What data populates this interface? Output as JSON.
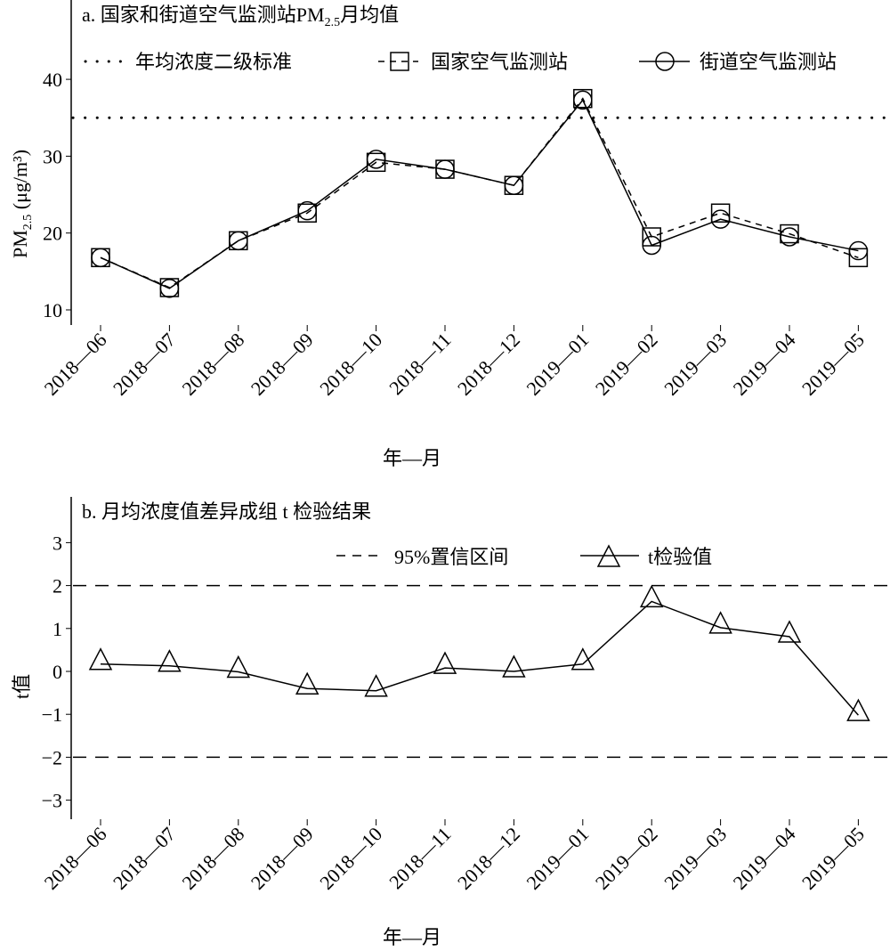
{
  "chart_data": [
    {
      "type": "line",
      "title": "a. 国家和街道空气监测站PM₂.₅月均值",
      "title_main": "a. 国家和街道空气监测站PM",
      "title_sub": "2.5",
      "title_tail": "月均值",
      "xlabel": "年—月",
      "ylabel_main": "PM",
      "ylabel_sub": "2.5",
      "ylabel_tail": " (μg/m³)",
      "ylim": [
        8,
        45
      ],
      "yticks": [
        10,
        20,
        30,
        40
      ],
      "categories": [
        "2018—06",
        "2018—07",
        "2018—08",
        "2018—09",
        "2018—10",
        "2018—11",
        "2018—12",
        "2019—01",
        "2019—02",
        "2019—03",
        "2019—04",
        "2019—05"
      ],
      "reference": {
        "name": "年均浓度二级标准",
        "value": 35
      },
      "series": [
        {
          "name": "国家空气监测站",
          "marker": "square",
          "style": "dashed",
          "values": [
            16.8,
            12.9,
            19.0,
            22.6,
            29.2,
            28.3,
            26.2,
            37.5,
            19.5,
            22.6,
            19.9,
            16.8
          ]
        },
        {
          "name": "街道空气监测站",
          "marker": "circle",
          "style": "solid",
          "values": [
            16.8,
            12.8,
            19.0,
            22.9,
            29.6,
            28.3,
            26.2,
            37.3,
            18.4,
            21.8,
            19.5,
            17.7
          ]
        }
      ],
      "legend": "top"
    },
    {
      "type": "line",
      "title": "b. 月均浓度值差异成组 t 检验结果",
      "xlabel": "年—月",
      "ylabel": "t值",
      "ylim": [
        -3.3,
        3.8
      ],
      "yticks": [
        -3,
        -2,
        -1,
        0,
        1,
        2,
        3
      ],
      "categories": [
        "2018—06",
        "2018—07",
        "2018—08",
        "2018—09",
        "2018—10",
        "2018—11",
        "2018—12",
        "2019—01",
        "2019—02",
        "2019—03",
        "2019—04",
        "2019—05"
      ],
      "reference": {
        "name": "95%置信区间",
        "values": [
          2,
          -2
        ]
      },
      "series": [
        {
          "name": "t检验值",
          "marker": "triangle",
          "style": "solid",
          "values": [
            0.17,
            0.13,
            -0.01,
            -0.4,
            -0.45,
            0.08,
            0.0,
            0.17,
            1.63,
            1.02,
            0.81,
            -1.02
          ]
        }
      ],
      "legend": "top"
    }
  ]
}
